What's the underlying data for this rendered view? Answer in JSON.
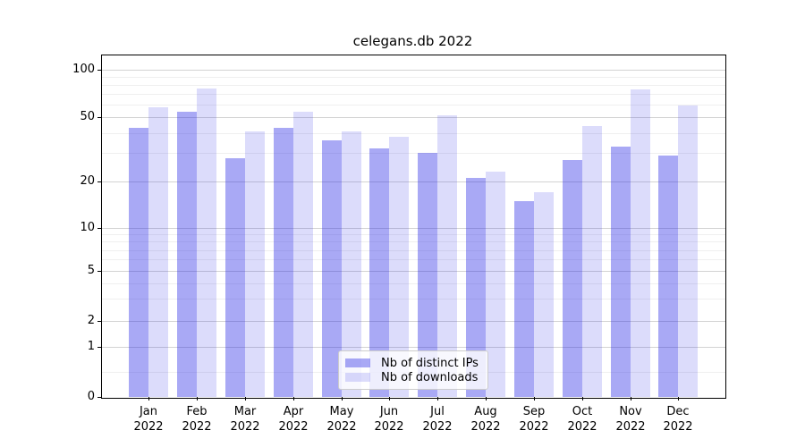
{
  "chart_data": {
    "type": "bar",
    "title": "celegans.db 2022",
    "categories": [
      "Jan",
      "Feb",
      "Mar",
      "Apr",
      "May",
      "Jun",
      "Jul",
      "Aug",
      "Sep",
      "Oct",
      "Nov",
      "Dec"
    ],
    "x_tick_second_line": "2022",
    "series": [
      {
        "name": "Nb of distinct IPs",
        "color": "#aaaaf5",
        "fill": "rgba(30,30,230,0.38)",
        "values": [
          43,
          54,
          28,
          43,
          36,
          32,
          30,
          21,
          15,
          27,
          33,
          29
        ]
      },
      {
        "name": "Nb of downloads",
        "color": "#dcdcfa",
        "fill": "rgba(30,30,230,0.155)",
        "values": [
          58,
          76,
          41,
          54,
          41,
          38,
          51,
          23,
          17,
          44,
          75,
          59
        ]
      }
    ],
    "yscale": "symlog",
    "y_ticks": [
      0,
      1,
      2,
      5,
      10,
      20,
      50,
      100
    ],
    "y_minor_gridlines": [
      0.5,
      3,
      4,
      6,
      7,
      8,
      9,
      30,
      40,
      60,
      70,
      80,
      90
    ],
    "ylim": [
      0,
      130
    ],
    "xlabel": "",
    "ylabel": "",
    "grid": "horizontal-major-and-minor",
    "legend_position": "inside-bottom-center"
  }
}
